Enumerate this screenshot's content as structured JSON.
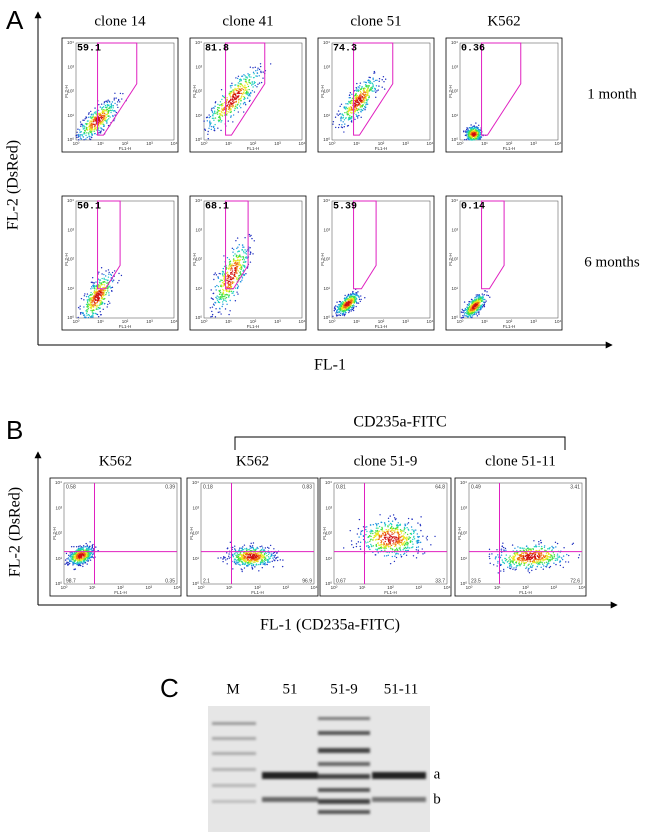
{
  "panel_a": {
    "label": "A",
    "columns": [
      "clone 14",
      "clone 41",
      "clone 51",
      "K562"
    ],
    "rows": [
      {
        "label": "1 month",
        "gates": [
          "59.1",
          "81.8",
          "74.3",
          "0.36"
        ]
      },
      {
        "label": "6 months",
        "gates": [
          "50.1",
          "68.1",
          "5.39",
          "0.14"
        ]
      }
    ],
    "y_axis": "FL-2 (DsRed)",
    "x_axis": "FL-1"
  },
  "panel_b": {
    "label": "B",
    "group": "CD235a-FITC",
    "columns": [
      "K562",
      "K562",
      "clone 51-9",
      "clone 51-11"
    ],
    "quadrants": [
      [
        "0.58",
        "0.39",
        "98.7",
        "0.35"
      ],
      [
        "0.18",
        "0.83",
        "2.1",
        "96.9"
      ],
      [
        "0.81",
        "64.8",
        "0.67",
        "33.7"
      ],
      [
        "0.49",
        "3.41",
        "23.5",
        "72.6"
      ]
    ],
    "y_axis": "FL-2 (DsRed)",
    "x_axis": "FL-1 (CD235a-FITC)"
  },
  "panel_c": {
    "label": "C",
    "lanes": [
      "M",
      "51",
      "51-9",
      "51-11"
    ],
    "bands": [
      "a",
      "b"
    ]
  },
  "plot_axes": {
    "y": "FL2-H",
    "x": "FL1-H",
    "decades": [
      "10⁰",
      "10¹",
      "10²",
      "10³",
      "10⁴"
    ]
  }
}
